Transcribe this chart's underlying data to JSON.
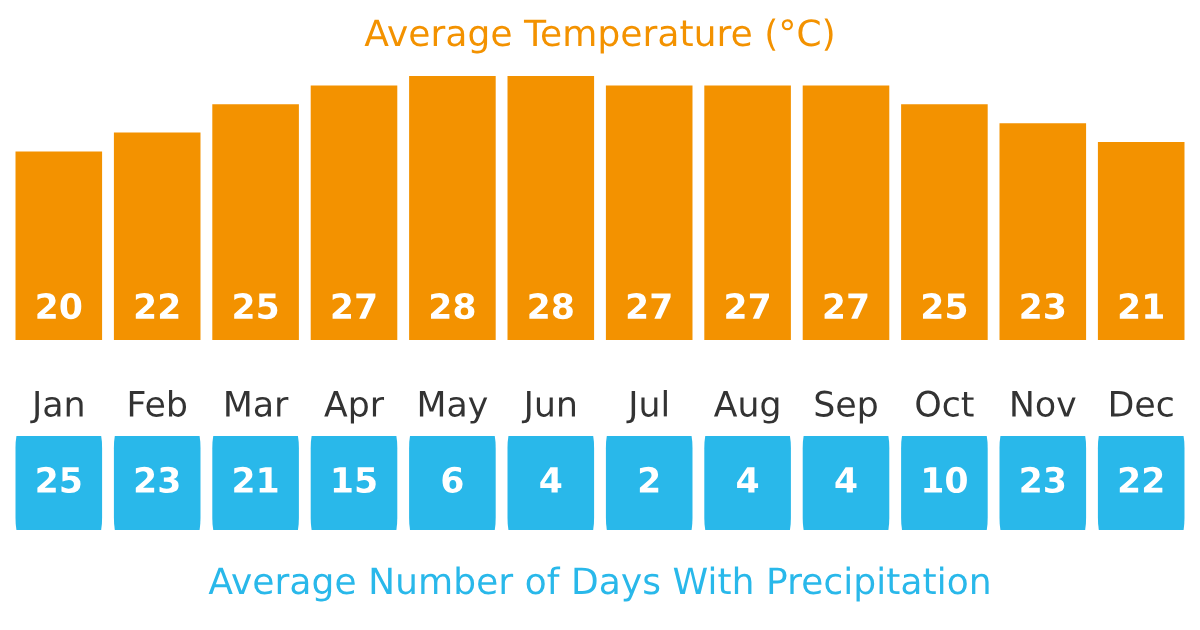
{
  "chart_data": [
    {
      "type": "bar",
      "title": "Average Temperature (°C)",
      "categories": [
        "Jan",
        "Feb",
        "Mar",
        "Apr",
        "May",
        "Jun",
        "Jul",
        "Aug",
        "Sep",
        "Oct",
        "Nov",
        "Dec"
      ],
      "values": [
        20,
        22,
        25,
        27,
        28,
        28,
        27,
        27,
        27,
        25,
        23,
        21
      ],
      "color": "#f39200",
      "data_labels": true
    },
    {
      "type": "other",
      "title": "Average Number of Days With Precipitation",
      "values": [
        25,
        23,
        21,
        15,
        6,
        4,
        2,
        4,
        4,
        10,
        23,
        22
      ],
      "color": "#29b8ea",
      "data_labels": true
    }
  ]
}
